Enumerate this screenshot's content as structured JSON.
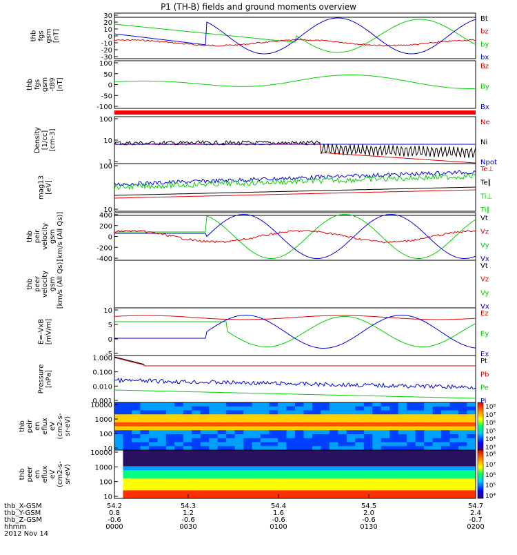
{
  "title": "P1 (TH-B) fields and ground moments overview",
  "date_label": "2012 Nov 14",
  "time_axis": {
    "rows": [
      {
        "label": "thb_X-GSM",
        "values": [
          "54.2",
          "54.3",
          "54.4",
          "54.5",
          "54.7"
        ]
      },
      {
        "label": "thb_Y-GSM",
        "values": [
          "0.8",
          "1.2",
          "1.6",
          "2.0",
          "2.4"
        ]
      },
      {
        "label": "thb_Z-GSM",
        "values": [
          "-0.6",
          "-0.6",
          "-0.6",
          "-0.6",
          "-0.7"
        ]
      },
      {
        "label": "hhmm",
        "values": [
          "0000",
          "0030",
          "0100",
          "0130",
          "0200"
        ]
      }
    ]
  },
  "colors": {
    "black": "#000000",
    "red": "#e00000",
    "green": "#00d000",
    "blue": "#0000e0"
  },
  "chart_data": [
    {
      "type": "line",
      "ylabel_lines": [
        "thb",
        "fgs",
        "gsm",
        "[nT]"
      ],
      "ylim": [
        -30,
        30
      ],
      "ticks": [
        "30",
        "20",
        "10",
        "0",
        "-10",
        "-20",
        "-30"
      ],
      "legend": [
        {
          "name": "Bt",
          "color": "black"
        },
        {
          "name": "bz",
          "color": "red"
        },
        {
          "name": "by",
          "color": "green"
        },
        {
          "name": "bx",
          "color": "blue"
        }
      ]
    },
    {
      "type": "line",
      "ylabel_lines": [
        "thb",
        "fgs",
        "gsm",
        "-t89",
        "[nT]"
      ],
      "ylim": [
        -100,
        100
      ],
      "ticks": [
        "100",
        "50",
        "0",
        "-50",
        "-100"
      ],
      "legend": [
        {
          "name": "Bz",
          "color": "red"
        },
        {
          "name": "By",
          "color": "green"
        },
        {
          "name": "Bx",
          "color": "blue"
        }
      ]
    },
    {
      "type": "line",
      "ylabel_lines": [
        "Density",
        "[1/cc]",
        "[cm-3]"
      ],
      "scale": "log",
      "ticks": [
        "100",
        "10",
        "1"
      ],
      "legend": [
        {
          "name": "Ne",
          "color": "red"
        },
        {
          "name": "Ni",
          "color": "black"
        },
        {
          "name": "Npot",
          "color": "blue"
        }
      ]
    },
    {
      "type": "line",
      "ylabel_lines": [
        "mag13",
        "[eV]"
      ],
      "scale": "log",
      "ticks": [
        "100",
        "10"
      ],
      "legend": [
        {
          "name": "Te⊥",
          "color": "red"
        },
        {
          "name": "Te∥",
          "color": "black"
        },
        {
          "name": "Ti⊥",
          "color": "green"
        },
        {
          "name": "Ti∥",
          "color": "green"
        }
      ]
    },
    {
      "type": "line",
      "ylabel_lines": [
        "thb",
        "peir",
        "velocity",
        "gsm",
        "[km/s (All Qs)]"
      ],
      "ylim": [
        -400,
        400
      ],
      "ticks": [
        "400",
        "200",
        "0",
        "-200",
        "-400"
      ],
      "legend": [
        {
          "name": "Vt",
          "color": "black"
        },
        {
          "name": "Vz",
          "color": "red"
        },
        {
          "name": "Vy",
          "color": "green"
        },
        {
          "name": "Vx",
          "color": "blue"
        }
      ]
    },
    {
      "type": "line",
      "ylabel_lines": [
        "thb",
        "peer",
        "velocity",
        "gsm",
        "[km/s (All Qs)]"
      ],
      "ylim": [
        null,
        null
      ],
      "ticks": [],
      "legend": [
        {
          "name": "Vt",
          "color": "black"
        },
        {
          "name": "Vz",
          "color": "red"
        },
        {
          "name": "Vy",
          "color": "green"
        },
        {
          "name": "Vx",
          "color": "blue"
        }
      ]
    },
    {
      "type": "line",
      "ylabel_lines": [
        "E=-VxB",
        "[mV/m]"
      ],
      "ylim": [
        -5,
        10
      ],
      "ticks": [
        "10",
        "5",
        "0",
        "-5"
      ],
      "legend": [
        {
          "name": "Ez",
          "color": "red"
        },
        {
          "name": "Ey",
          "color": "green"
        },
        {
          "name": "Ex",
          "color": "blue"
        }
      ]
    },
    {
      "type": "line",
      "ylabel_lines": [
        "Pressure",
        "[nPa]"
      ],
      "scale": "log",
      "ticks": [
        "1.000",
        "0.100",
        "0.010",
        "0.001"
      ],
      "legend": [
        {
          "name": "Pt",
          "color": "black"
        },
        {
          "name": "Pb",
          "color": "red"
        },
        {
          "name": "Pe",
          "color": "green"
        },
        {
          "name": "Pi",
          "color": "blue"
        }
      ]
    },
    {
      "type": "heatmap",
      "ylabel_lines": [
        "thb",
        "peir",
        "en",
        "eflux",
        "eV",
        "(cm2-s-",
        "sr-eV)"
      ],
      "scale": "log",
      "ticks": [
        "10000",
        "1000",
        "100",
        "10"
      ],
      "colorbar_ticks": [
        "10⁸",
        "10⁷",
        "10⁶",
        "10⁵",
        "10⁴",
        "10³"
      ]
    },
    {
      "type": "heatmap",
      "ylabel_lines": [
        "thb",
        "peer",
        "en",
        "eflux",
        "eV",
        "(cm2-s-",
        "sr-eV)"
      ],
      "scale": "log",
      "ticks": [
        "10000",
        "1000",
        "100",
        "10"
      ],
      "colorbar_ticks": [
        "10⁸",
        "10⁷",
        "10⁶",
        "10⁵",
        "10⁴"
      ]
    }
  ]
}
